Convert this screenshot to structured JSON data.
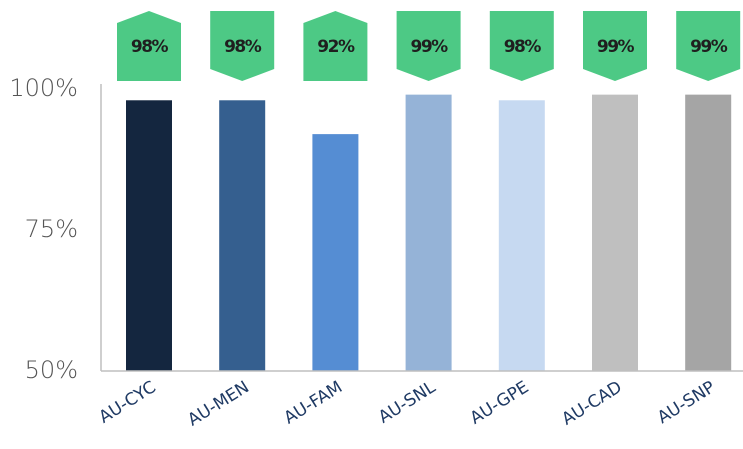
{
  "chart_data": {
    "type": "bar",
    "categories": [
      "AU-CYC",
      "AU-MEN",
      "AU-FAM",
      "AU-SNL",
      "AU-GPE",
      "AU-CAD",
      "AU-SNP"
    ],
    "values": [
      98,
      98,
      92,
      99,
      98,
      99,
      99
    ],
    "data_labels": [
      "98%",
      "98%",
      "92%",
      "99%",
      "98%",
      "99%",
      "99%"
    ],
    "bar_colors": [
      "#14263f",
      "#355f8f",
      "#558dd3",
      "#95b3d7",
      "#c6d9f1",
      "#bfbfbf",
      "#a5a5a5"
    ],
    "label_callout_color": "#4dc985",
    "label_callout_direction": [
      "up",
      "down",
      "up",
      "down",
      "down",
      "down",
      "down"
    ],
    "y_ticks": [
      {
        "value": 100,
        "label": "100%"
      },
      {
        "value": 75,
        "label": "75%"
      },
      {
        "value": 50,
        "label": "50%"
      }
    ],
    "ylim": [
      50,
      100
    ],
    "grid": false,
    "legend": "none"
  }
}
